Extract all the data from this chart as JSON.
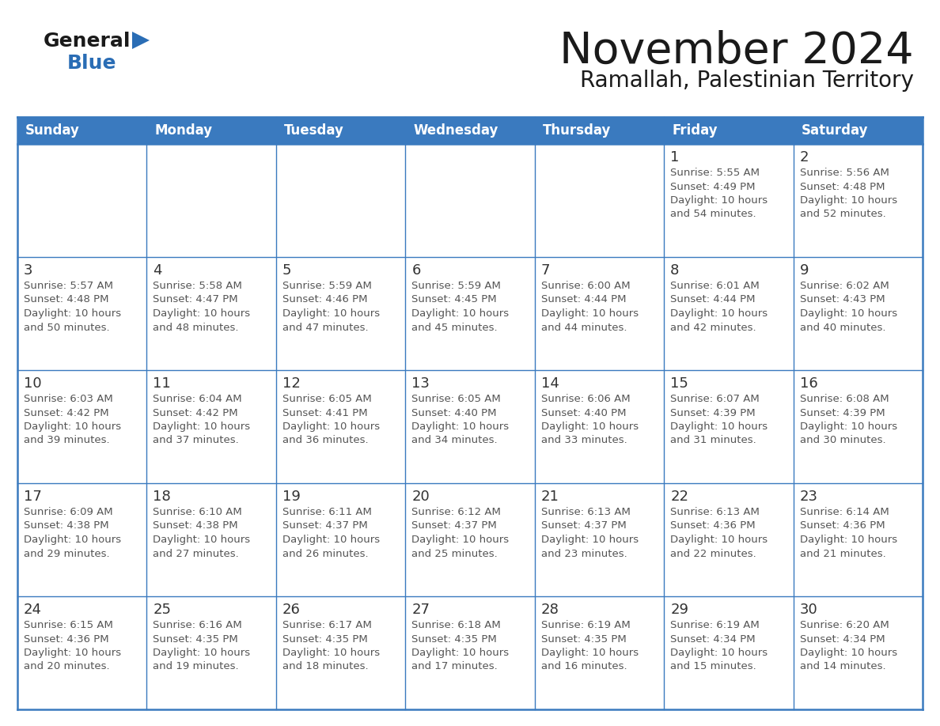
{
  "title": "November 2024",
  "subtitle": "Ramallah, Palestinian Territory",
  "header_bg": "#3a7abf",
  "header_text_color": "#ffffff",
  "cell_bg": "#ffffff",
  "cell_border_color": "#3a7abf",
  "day_number_color": "#333333",
  "cell_text_color": "#555555",
  "days_of_week": [
    "Sunday",
    "Monday",
    "Tuesday",
    "Wednesday",
    "Thursday",
    "Friday",
    "Saturday"
  ],
  "logo_general_color": "#1a1a1a",
  "logo_blue_color": "#2a6db5",
  "logo_triangle_color": "#2a6db5",
  "calendar_data": [
    [
      "",
      "",
      "",
      "",
      "",
      "1\nSunrise: 5:55 AM\nSunset: 4:49 PM\nDaylight: 10 hours\nand 54 minutes.",
      "2\nSunrise: 5:56 AM\nSunset: 4:48 PM\nDaylight: 10 hours\nand 52 minutes."
    ],
    [
      "3\nSunrise: 5:57 AM\nSunset: 4:48 PM\nDaylight: 10 hours\nand 50 minutes.",
      "4\nSunrise: 5:58 AM\nSunset: 4:47 PM\nDaylight: 10 hours\nand 48 minutes.",
      "5\nSunrise: 5:59 AM\nSunset: 4:46 PM\nDaylight: 10 hours\nand 47 minutes.",
      "6\nSunrise: 5:59 AM\nSunset: 4:45 PM\nDaylight: 10 hours\nand 45 minutes.",
      "7\nSunrise: 6:00 AM\nSunset: 4:44 PM\nDaylight: 10 hours\nand 44 minutes.",
      "8\nSunrise: 6:01 AM\nSunset: 4:44 PM\nDaylight: 10 hours\nand 42 minutes.",
      "9\nSunrise: 6:02 AM\nSunset: 4:43 PM\nDaylight: 10 hours\nand 40 minutes."
    ],
    [
      "10\nSunrise: 6:03 AM\nSunset: 4:42 PM\nDaylight: 10 hours\nand 39 minutes.",
      "11\nSunrise: 6:04 AM\nSunset: 4:42 PM\nDaylight: 10 hours\nand 37 minutes.",
      "12\nSunrise: 6:05 AM\nSunset: 4:41 PM\nDaylight: 10 hours\nand 36 minutes.",
      "13\nSunrise: 6:05 AM\nSunset: 4:40 PM\nDaylight: 10 hours\nand 34 minutes.",
      "14\nSunrise: 6:06 AM\nSunset: 4:40 PM\nDaylight: 10 hours\nand 33 minutes.",
      "15\nSunrise: 6:07 AM\nSunset: 4:39 PM\nDaylight: 10 hours\nand 31 minutes.",
      "16\nSunrise: 6:08 AM\nSunset: 4:39 PM\nDaylight: 10 hours\nand 30 minutes."
    ],
    [
      "17\nSunrise: 6:09 AM\nSunset: 4:38 PM\nDaylight: 10 hours\nand 29 minutes.",
      "18\nSunrise: 6:10 AM\nSunset: 4:38 PM\nDaylight: 10 hours\nand 27 minutes.",
      "19\nSunrise: 6:11 AM\nSunset: 4:37 PM\nDaylight: 10 hours\nand 26 minutes.",
      "20\nSunrise: 6:12 AM\nSunset: 4:37 PM\nDaylight: 10 hours\nand 25 minutes.",
      "21\nSunrise: 6:13 AM\nSunset: 4:37 PM\nDaylight: 10 hours\nand 23 minutes.",
      "22\nSunrise: 6:13 AM\nSunset: 4:36 PM\nDaylight: 10 hours\nand 22 minutes.",
      "23\nSunrise: 6:14 AM\nSunset: 4:36 PM\nDaylight: 10 hours\nand 21 minutes."
    ],
    [
      "24\nSunrise: 6:15 AM\nSunset: 4:36 PM\nDaylight: 10 hours\nand 20 minutes.",
      "25\nSunrise: 6:16 AM\nSunset: 4:35 PM\nDaylight: 10 hours\nand 19 minutes.",
      "26\nSunrise: 6:17 AM\nSunset: 4:35 PM\nDaylight: 10 hours\nand 18 minutes.",
      "27\nSunrise: 6:18 AM\nSunset: 4:35 PM\nDaylight: 10 hours\nand 17 minutes.",
      "28\nSunrise: 6:19 AM\nSunset: 4:35 PM\nDaylight: 10 hours\nand 16 minutes.",
      "29\nSunrise: 6:19 AM\nSunset: 4:34 PM\nDaylight: 10 hours\nand 15 minutes.",
      "30\nSunrise: 6:20 AM\nSunset: 4:34 PM\nDaylight: 10 hours\nand 14 minutes."
    ]
  ]
}
